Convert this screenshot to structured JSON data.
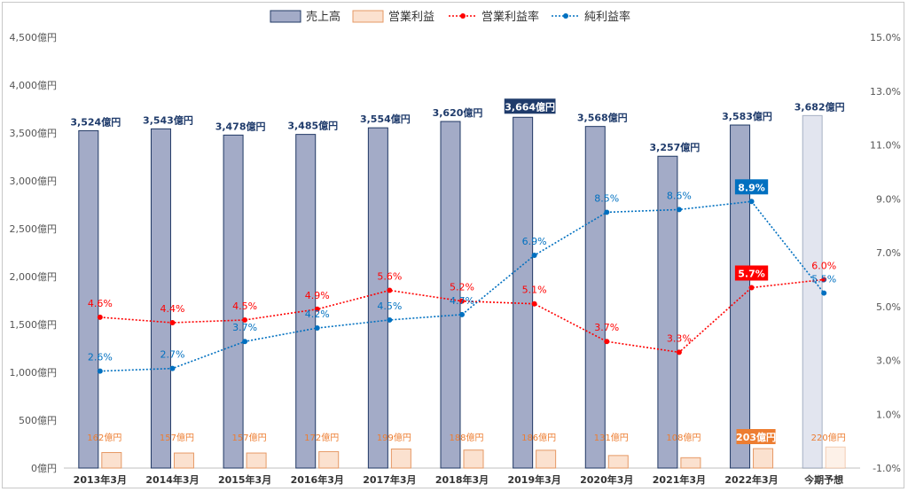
{
  "chart_data": {
    "type": "bar",
    "categories": [
      "2013年3月",
      "2014年3月",
      "2015年3月",
      "2016年3月",
      "2017年3月",
      "2018年3月",
      "2019年3月",
      "2020年3月",
      "2021年3月",
      "2022年3月",
      "今期予想"
    ],
    "series": [
      {
        "name": "売上高",
        "kind": "bar",
        "axis": "left",
        "values": [
          3524,
          3543,
          3478,
          3485,
          3554,
          3620,
          3664,
          3568,
          3257,
          3583,
          3682
        ],
        "labels": [
          "3,524億円",
          "3,543億円",
          "3,478億円",
          "3,485億円",
          "3,554億円",
          "3,620億円",
          "3,664億円",
          "3,568億円",
          "3,257億円",
          "3,583億円",
          "3,682億円"
        ]
      },
      {
        "name": "営業利益",
        "kind": "bar",
        "axis": "left",
        "values": [
          162,
          157,
          157,
          172,
          199,
          188,
          186,
          131,
          108,
          203,
          220
        ],
        "labels": [
          "162億円",
          "157億円",
          "157億円",
          "172億円",
          "199億円",
          "188億円",
          "186億円",
          "131億円",
          "108億円",
          "203億円",
          "220億円"
        ]
      },
      {
        "name": "営業利益率",
        "kind": "line",
        "axis": "right",
        "values": [
          4.6,
          4.4,
          4.5,
          4.9,
          5.6,
          5.2,
          5.1,
          3.7,
          3.3,
          5.7,
          6.0
        ],
        "labels": [
          "4.6%",
          "4.4%",
          "4.5%",
          "4.9%",
          "5.6%",
          "5.2%",
          "5.1%",
          "3.7%",
          "3.3%",
          "5.7%",
          "6.0%"
        ]
      },
      {
        "name": "純利益率",
        "kind": "line",
        "axis": "right",
        "values": [
          2.6,
          2.7,
          3.7,
          4.2,
          4.5,
          4.7,
          6.9,
          8.5,
          8.6,
          8.9,
          5.5
        ],
        "labels": [
          "2.6%",
          "2.7%",
          "3.7%",
          "4.2%",
          "4.5%",
          "4.7%",
          "6.9%",
          "8.5%",
          "8.6%",
          "8.9%",
          "5.5%"
        ]
      }
    ],
    "y_left": {
      "ylim": [
        0,
        4500
      ],
      "ticks": [
        0,
        500,
        1000,
        1500,
        2000,
        2500,
        3000,
        3500,
        4000,
        4500
      ],
      "tick_labels": [
        "0億円",
        "500億円",
        "1,000億円",
        "1,500億円",
        "2,000億円",
        "2,500億円",
        "3,000億円",
        "3,500億円",
        "4,000億円",
        "4,500億円"
      ]
    },
    "y_right": {
      "ylim": [
        -1.0,
        15.0
      ],
      "ticks": [
        -1,
        1,
        3,
        5,
        7,
        9,
        11,
        13,
        15
      ],
      "tick_labels": [
        "-1.0%",
        "1.0%",
        "3.0%",
        "5.0%",
        "7.0%",
        "9.0%",
        "11.0%",
        "13.0%",
        "15.0%"
      ]
    },
    "highlights": {
      "sales_index": 6,
      "op_profit_index": 9,
      "op_margin_index": 9,
      "net_margin_index": 9
    },
    "forecast_index": 10,
    "legend_position": "top",
    "colors": {
      "sales": "#a3abc7",
      "sales_edge": "#203864",
      "sales_label": "#1f3b6b",
      "op": "#fbe1cf",
      "op_edge": "#e69965",
      "op_label": "#ed7d31",
      "op_margin": "#ff0000",
      "net_margin": "#0070c0",
      "forecast_sales": "#e2e5ef",
      "forecast_op": "#fdf1e8",
      "axis_text": "#555555"
    }
  }
}
